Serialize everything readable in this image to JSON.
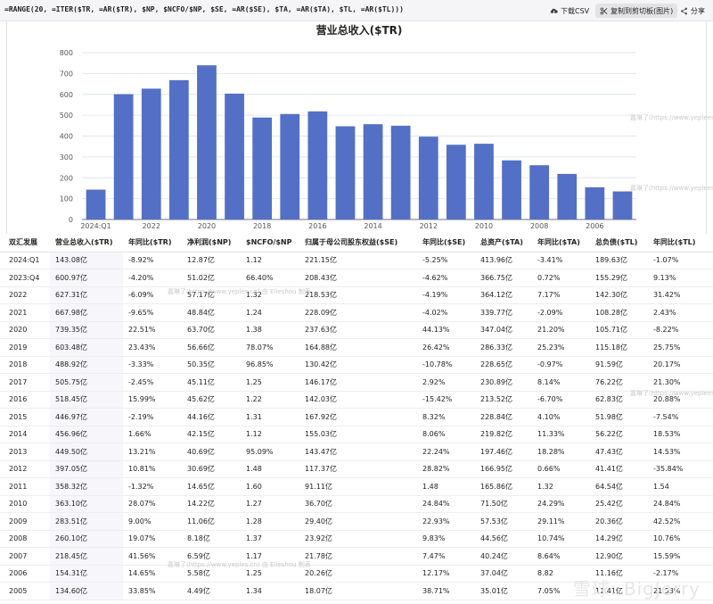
{
  "toolbar": {
    "formula": "=RANGE(20, =ITER($TR, =AR($TR), $NP, $NCFO/$NP, $SE, =AR($SE), $TA, =AR($TA), $TL, =AR($TL)))",
    "download_label": "下载CSV",
    "copy_label": "复制到剪切板(图片)",
    "share_label": "分享"
  },
  "watermark": {
    "text_a": "嘉琳了(https://www.yeples.cn) 由 Elieshou 制表",
    "text_b": "嘉琳了(https://www.yeplees.cn)",
    "brand": "雪球: BigJerry"
  },
  "chart_data": {
    "type": "bar",
    "title": "营业总收入($TR)",
    "categories": [
      "2024:Q1",
      "2023:Q4",
      "2022",
      "2021",
      "2020",
      "2019",
      "2018",
      "2017",
      "2016",
      "2015",
      "2014",
      "2013",
      "2012",
      "2011",
      "2010",
      "2009",
      "2008",
      "2007",
      "2006",
      "2005"
    ],
    "values": [
      143.08,
      600.97,
      627.31,
      667.98,
      739.35,
      603.48,
      488.92,
      505.75,
      518.45,
      446.97,
      456.96,
      449.5,
      397.05,
      358.32,
      363.1,
      283.51,
      260.1,
      218.45,
      154.31,
      134.6
    ],
    "x_tick_labels": [
      "2024:Q1",
      "2022",
      "2020",
      "2018",
      "2016",
      "2014",
      "2012",
      "2010",
      "2008",
      "2006"
    ],
    "ylim": [
      0,
      800
    ],
    "y_ticks": [
      "800",
      "700",
      "600",
      "500",
      "400",
      "300",
      "200",
      "100",
      "0"
    ],
    "bar_color": "#5470c6",
    "grid": true
  },
  "table": {
    "headers": [
      "双汇发展",
      "营业总收入($TR)",
      "年同比($TR)",
      "净利润($NP)",
      "$NCFO/$NP",
      "归属于母公司股东权益($SE)",
      "年同比($SE)",
      "总资产($TA)",
      "年同比($TA)",
      "总负债($TL)",
      "年同比($TL)"
    ],
    "rows": [
      [
        "2024:Q1",
        "143.08亿",
        "-8.92%",
        "12.87亿",
        "1.12",
        "221.15亿",
        "-5.25%",
        "413.96亿",
        "-3.41%",
        "189.63亿",
        "-1.07%"
      ],
      [
        "2023:Q4",
        "600.97亿",
        "-4.20%",
        "51.02亿",
        "66.40%",
        "208.43亿",
        "-4.62%",
        "366.75亿",
        "0.72%",
        "155.29亿",
        "9.13%"
      ],
      [
        "2022",
        "627.31亿",
        "-6.09%",
        "57.17亿",
        "1.32",
        "218.53亿",
        "-4.19%",
        "364.12亿",
        "7.17%",
        "142.30亿",
        "31.42%"
      ],
      [
        "2021",
        "667.98亿",
        "-9.65%",
        "48.84亿",
        "1.24",
        "228.09亿",
        "-4.02%",
        "339.77亿",
        "-2.09%",
        "108.28亿",
        "2.43%"
      ],
      [
        "2020",
        "739.35亿",
        "22.51%",
        "63.70亿",
        "1.38",
        "237.63亿",
        "44.13%",
        "347.04亿",
        "21.20%",
        "105.71亿",
        "-8.22%"
      ],
      [
        "2019",
        "603.48亿",
        "23.43%",
        "56.66亿",
        "78.07%",
        "164.88亿",
        "26.42%",
        "286.33亿",
        "25.23%",
        "115.18亿",
        "25.75%"
      ],
      [
        "2018",
        "488.92亿",
        "-3.33%",
        "50.35亿",
        "96.85%",
        "130.42亿",
        "-10.78%",
        "228.65亿",
        "-0.97%",
        "91.59亿",
        "20.17%"
      ],
      [
        "2017",
        "505.75亿",
        "-2.45%",
        "45.11亿",
        "1.25",
        "146.17亿",
        "2.92%",
        "230.89亿",
        "8.14%",
        "76.22亿",
        "21.30%"
      ],
      [
        "2016",
        "518.45亿",
        "15.99%",
        "45.62亿",
        "1.22",
        "142.03亿",
        "-15.42%",
        "213.52亿",
        "-6.70%",
        "62.83亿",
        "20.88%"
      ],
      [
        "2015",
        "446.97亿",
        "-2.19%",
        "44.16亿",
        "1.31",
        "167.92亿",
        "8.32%",
        "228.84亿",
        "4.10%",
        "51.98亿",
        "-7.54%"
      ],
      [
        "2014",
        "456.96亿",
        "1.66%",
        "42.15亿",
        "1.12",
        "155.03亿",
        "8.06%",
        "219.82亿",
        "11.33%",
        "56.22亿",
        "18.53%"
      ],
      [
        "2013",
        "449.50亿",
        "13.21%",
        "40.69亿",
        "95.09%",
        "143.47亿",
        "22.24%",
        "197.46亿",
        "18.28%",
        "47.43亿",
        "14.53%"
      ],
      [
        "2012",
        "397.05亿",
        "10.81%",
        "30.69亿",
        "1.48",
        "117.37亿",
        "28.82%",
        "166.95亿",
        "0.66%",
        "41.41亿",
        "-35.84%"
      ],
      [
        "2011",
        "358.32亿",
        "-1.32%",
        "14.65亿",
        "1.60",
        "91.11亿",
        "1.48",
        "165.86亿",
        "1.32",
        "64.54亿",
        "1.54"
      ],
      [
        "2010",
        "363.10亿",
        "28.07%",
        "14.22亿",
        "1.27",
        "36.70亿",
        "24.84%",
        "71.50亿",
        "24.29%",
        "25.42亿",
        "24.84%"
      ],
      [
        "2009",
        "283.51亿",
        "9.00%",
        "11.06亿",
        "1.28",
        "29.40亿",
        "22.93%",
        "57.53亿",
        "29.11%",
        "20.36亿",
        "42.52%"
      ],
      [
        "2008",
        "260.10亿",
        "19.07%",
        "8.18亿",
        "1.37",
        "23.92亿",
        "9.83%",
        "44.56亿",
        "10.74%",
        "14.29亿",
        "10.76%"
      ],
      [
        "2007",
        "218.45亿",
        "41.56%",
        "6.59亿",
        "1.17",
        "21.78亿",
        "7.47%",
        "40.24亿",
        "8.64%",
        "12.90亿",
        "15.59%"
      ],
      [
        "2006",
        "154.31亿",
        "14.65%",
        "5.58亿",
        "1.25",
        "20.26亿",
        "12.17%",
        "37.04亿",
        "8.82",
        "11.16亿",
        "-2.17%"
      ],
      [
        "2005",
        "134.60亿",
        "33.85%",
        "4.49亿",
        "1.34",
        "18.07亿",
        "38.71%",
        "35.01亿",
        "7.05%",
        "11.41亿",
        "21.53%"
      ]
    ]
  }
}
